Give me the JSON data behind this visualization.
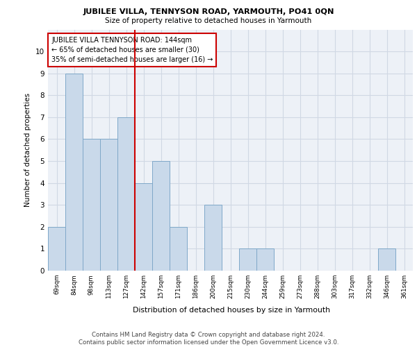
{
  "title1": "JUBILEE VILLA, TENNYSON ROAD, YARMOUTH, PO41 0QN",
  "title2": "Size of property relative to detached houses in Yarmouth",
  "xlabel": "Distribution of detached houses by size in Yarmouth",
  "ylabel": "Number of detached properties",
  "categories": [
    "69sqm",
    "84sqm",
    "98sqm",
    "113sqm",
    "127sqm",
    "142sqm",
    "157sqm",
    "171sqm",
    "186sqm",
    "200sqm",
    "215sqm",
    "230sqm",
    "244sqm",
    "259sqm",
    "273sqm",
    "288sqm",
    "303sqm",
    "317sqm",
    "332sqm",
    "346sqm",
    "361sqm"
  ],
  "values": [
    2,
    9,
    6,
    6,
    7,
    4,
    5,
    2,
    0,
    3,
    0,
    1,
    1,
    0,
    0,
    0,
    0,
    0,
    0,
    1,
    0
  ],
  "bar_color": "#c9d9ea",
  "bar_edge_color": "#7fa8c9",
  "grid_color": "#d0d8e4",
  "vline_index": 5,
  "vline_color": "#cc0000",
  "annotation_text": "JUBILEE VILLA TENNYSON ROAD: 144sqm\n← 65% of detached houses are smaller (30)\n35% of semi-detached houses are larger (16) →",
  "annotation_box_color": "#ffffff",
  "annotation_box_edge_color": "#cc0000",
  "ylim": [
    0,
    11
  ],
  "yticks": [
    0,
    1,
    2,
    3,
    4,
    5,
    6,
    7,
    8,
    9,
    10
  ],
  "footer": "Contains HM Land Registry data © Crown copyright and database right 2024.\nContains public sector information licensed under the Open Government Licence v3.0.",
  "background_color": "#edf1f7"
}
